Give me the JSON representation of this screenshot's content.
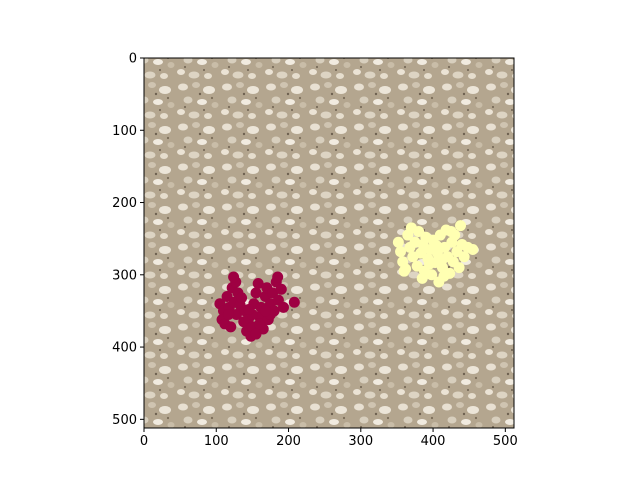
{
  "chart_data": {
    "type": "scatter",
    "title": "",
    "xlabel": "",
    "ylabel": "",
    "xlim": [
      0,
      512
    ],
    "ylim": [
      512,
      0
    ],
    "y_inverted": true,
    "grid": false,
    "legend": "none",
    "background_image": "gravel-ground-photo",
    "x_ticks": [
      0,
      100,
      200,
      300,
      400,
      500
    ],
    "y_ticks": [
      0,
      100,
      200,
      300,
      400,
      500
    ],
    "series": [
      {
        "color": "#9e0142",
        "marker": "circle",
        "points": [
          [
            105,
            340
          ],
          [
            110,
            350
          ],
          [
            108,
            362
          ],
          [
            115,
            330
          ],
          [
            118,
            345
          ],
          [
            122,
            318
          ],
          [
            125,
            338
          ],
          [
            128,
            355
          ],
          [
            112,
            368
          ],
          [
            120,
            372
          ],
          [
            130,
            325
          ],
          [
            133,
            342
          ],
          [
            127,
            310
          ],
          [
            140,
            350
          ],
          [
            138,
            365
          ],
          [
            142,
            378
          ],
          [
            145,
            360
          ],
          [
            148,
            385
          ],
          [
            150,
            372
          ],
          [
            152,
            340
          ],
          [
            155,
            325
          ],
          [
            158,
            312
          ],
          [
            160,
            358
          ],
          [
            162,
            345
          ],
          [
            165,
            375
          ],
          [
            168,
            330
          ],
          [
            170,
            318
          ],
          [
            172,
            362
          ],
          [
            175,
            340
          ],
          [
            178,
            325
          ],
          [
            180,
            350
          ],
          [
            183,
            310
          ],
          [
            186,
            335
          ],
          [
            190,
            320
          ],
          [
            193,
            345
          ],
          [
            150,
            355
          ],
          [
            135,
            332
          ],
          [
            145,
            348
          ],
          [
            160,
            368
          ],
          [
            175,
            355
          ],
          [
            208,
            338
          ],
          [
            117,
            355
          ],
          [
            155,
            382
          ],
          [
            185,
            303
          ],
          [
            168,
            350
          ],
          [
            124,
            303
          ]
        ]
      },
      {
        "color": "#ffffb2",
        "marker": "circle",
        "points": [
          [
            352,
            255
          ],
          [
            355,
            268
          ],
          [
            358,
            282
          ],
          [
            362,
            292
          ],
          [
            365,
            245
          ],
          [
            368,
            262
          ],
          [
            372,
            275
          ],
          [
            375,
            255
          ],
          [
            378,
            288
          ],
          [
            380,
            240
          ],
          [
            383,
            270
          ],
          [
            386,
            258
          ],
          [
            388,
            295
          ],
          [
            390,
            248
          ],
          [
            393,
            278
          ],
          [
            396,
            265
          ],
          [
            398,
            300
          ],
          [
            400,
            252
          ],
          [
            403,
            283
          ],
          [
            406,
            270
          ],
          [
            408,
            310
          ],
          [
            410,
            245
          ],
          [
            413,
            290
          ],
          [
            416,
            262
          ],
          [
            418,
            238
          ],
          [
            420,
            275
          ],
          [
            423,
            298
          ],
          [
            426,
            255
          ],
          [
            428,
            282
          ],
          [
            430,
            245
          ],
          [
            433,
            268
          ],
          [
            436,
            290
          ],
          [
            438,
            232
          ],
          [
            440,
            258
          ],
          [
            443,
            275
          ],
          [
            448,
            262
          ],
          [
            455,
            265
          ],
          [
            370,
            235
          ],
          [
            395,
            285
          ],
          [
            415,
            302
          ],
          [
            385,
            305
          ],
          [
            360,
            295
          ],
          [
            405,
            260
          ],
          [
            425,
            240
          ],
          [
            412,
            280
          ]
        ]
      }
    ]
  }
}
